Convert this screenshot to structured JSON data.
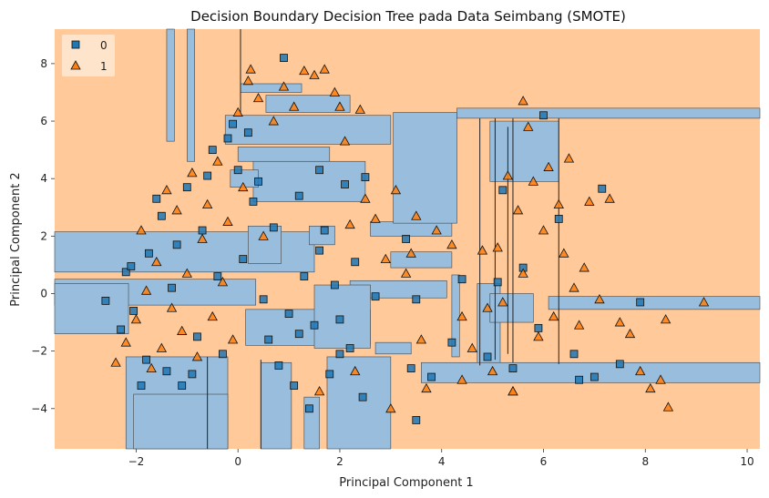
{
  "chart_data": {
    "type": "scatter",
    "title": "Decision Boundary Decision Tree pada Data Seimbang (SMOTE)",
    "xlabel": "Principal Component 1",
    "ylabel": "Principal Component 2",
    "xlim": [
      -3.6,
      10.25
    ],
    "ylim": [
      -5.4,
      9.2
    ],
    "xticks": [
      "−2",
      "0",
      "2",
      "4",
      "6",
      "8",
      "10"
    ],
    "xtick_values": [
      -2,
      0,
      2,
      4,
      6,
      8,
      10
    ],
    "yticks": [
      "−4",
      "−2",
      "0",
      "2",
      "4",
      "6",
      "8"
    ],
    "ytick_values": [
      -4,
      -2,
      0,
      2,
      4,
      6,
      8
    ],
    "grid": false,
    "legend_position": "top-left",
    "colors": {
      "class0": "#1f77b4",
      "class1": "#ff7f0e",
      "region0": "#99bedd",
      "region1": "#ffc999"
    },
    "series": [
      {
        "name": "0",
        "marker": "square",
        "points": [
          [
            -2.6,
            -0.25
          ],
          [
            -2.3,
            -1.25
          ],
          [
            -2.2,
            0.75
          ],
          [
            -2.1,
            0.95
          ],
          [
            -2.05,
            -0.6
          ],
          [
            -1.9,
            -3.2
          ],
          [
            -1.8,
            -2.3
          ],
          [
            -1.75,
            1.4
          ],
          [
            -1.6,
            3.3
          ],
          [
            -1.5,
            2.7
          ],
          [
            -1.4,
            -2.7
          ],
          [
            -1.3,
            0.2
          ],
          [
            -1.2,
            1.7
          ],
          [
            -1.1,
            -3.2
          ],
          [
            -1.0,
            3.7
          ],
          [
            -0.8,
            -1.5
          ],
          [
            -0.7,
            2.2
          ],
          [
            -0.6,
            4.1
          ],
          [
            -0.5,
            5.0
          ],
          [
            -0.4,
            0.6
          ],
          [
            -0.3,
            -2.1
          ],
          [
            -0.2,
            5.4
          ],
          [
            -0.1,
            5.9
          ],
          [
            0.0,
            4.3
          ],
          [
            0.1,
            1.2
          ],
          [
            0.2,
            5.6
          ],
          [
            0.3,
            3.2
          ],
          [
            0.5,
            -0.2
          ],
          [
            0.6,
            -1.6
          ],
          [
            0.7,
            2.3
          ],
          [
            0.8,
            -2.5
          ],
          [
            0.9,
            8.2
          ],
          [
            1.0,
            -0.7
          ],
          [
            1.1,
            -3.2
          ],
          [
            1.2,
            3.4
          ],
          [
            1.3,
            0.6
          ],
          [
            1.4,
            -4.0
          ],
          [
            1.5,
            -1.1
          ],
          [
            1.6,
            4.3
          ],
          [
            1.7,
            2.2
          ],
          [
            1.8,
            -2.8
          ],
          [
            1.9,
            0.3
          ],
          [
            2.0,
            -0.9
          ],
          [
            2.1,
            3.8
          ],
          [
            2.2,
            -1.9
          ],
          [
            2.3,
            1.1
          ],
          [
            2.45,
            -3.6
          ],
          [
            2.5,
            4.05
          ],
          [
            2.7,
            -0.1
          ],
          [
            3.3,
            1.9
          ],
          [
            3.4,
            -2.6
          ],
          [
            3.5,
            -0.2
          ],
          [
            3.8,
            -2.9
          ],
          [
            4.2,
            -1.7
          ],
          [
            4.4,
            0.5
          ],
          [
            4.9,
            -2.2
          ],
          [
            5.1,
            0.4
          ],
          [
            5.2,
            3.6
          ],
          [
            5.4,
            -2.6
          ],
          [
            5.6,
            0.9
          ],
          [
            5.9,
            -1.2
          ],
          [
            6.0,
            6.2
          ],
          [
            6.3,
            2.6
          ],
          [
            6.6,
            -2.1
          ],
          [
            6.7,
            -3.0
          ],
          [
            7.0,
            -2.9
          ],
          [
            7.15,
            3.65
          ],
          [
            7.5,
            -2.45
          ],
          [
            7.9,
            -0.3
          ],
          [
            3.5,
            -4.4
          ],
          [
            2.0,
            -2.1
          ],
          [
            1.2,
            -1.4
          ],
          [
            -0.9,
            -2.8
          ],
          [
            1.6,
            1.5
          ],
          [
            0.4,
            3.9
          ]
        ]
      },
      {
        "name": "1",
        "marker": "triangle",
        "points": [
          [
            -2.4,
            -2.4
          ],
          [
            -2.2,
            -1.7
          ],
          [
            -2.0,
            -0.9
          ],
          [
            -1.9,
            2.2
          ],
          [
            -1.8,
            0.1
          ],
          [
            -1.7,
            -2.6
          ],
          [
            -1.6,
            1.1
          ],
          [
            -1.5,
            -1.9
          ],
          [
            -1.4,
            3.6
          ],
          [
            -1.3,
            -0.5
          ],
          [
            -1.2,
            2.9
          ],
          [
            -1.1,
            -1.3
          ],
          [
            -1.0,
            0.7
          ],
          [
            -0.9,
            4.2
          ],
          [
            -0.8,
            -2.2
          ],
          [
            -0.7,
            1.9
          ],
          [
            -0.6,
            3.1
          ],
          [
            -0.5,
            -0.8
          ],
          [
            -0.4,
            4.6
          ],
          [
            -0.3,
            0.4
          ],
          [
            -0.2,
            2.5
          ],
          [
            -0.1,
            -1.6
          ],
          [
            0.0,
            6.3
          ],
          [
            0.1,
            3.7
          ],
          [
            0.2,
            7.4
          ],
          [
            0.25,
            7.8
          ],
          [
            0.4,
            6.8
          ],
          [
            0.5,
            2.0
          ],
          [
            0.7,
            6.0
          ],
          [
            0.9,
            7.2
          ],
          [
            1.1,
            6.5
          ],
          [
            1.3,
            7.75
          ],
          [
            1.5,
            7.6
          ],
          [
            1.7,
            7.8
          ],
          [
            1.9,
            7.0
          ],
          [
            2.0,
            6.5
          ],
          [
            2.1,
            5.3
          ],
          [
            2.2,
            2.4
          ],
          [
            2.4,
            6.4
          ],
          [
            2.5,
            3.3
          ],
          [
            2.7,
            2.6
          ],
          [
            2.9,
            1.2
          ],
          [
            3.0,
            -4.0
          ],
          [
            3.1,
            3.6
          ],
          [
            3.3,
            0.7
          ],
          [
            3.6,
            -1.6
          ],
          [
            3.9,
            2.2
          ],
          [
            3.5,
            2.7
          ],
          [
            3.4,
            1.4
          ],
          [
            4.2,
            1.7
          ],
          [
            4.4,
            -0.8
          ],
          [
            4.6,
            -1.9
          ],
          [
            4.8,
            1.5
          ],
          [
            4.9,
            -0.5
          ],
          [
            5.0,
            -2.7
          ],
          [
            5.1,
            1.6
          ],
          [
            5.2,
            -0.3
          ],
          [
            5.3,
            4.1
          ],
          [
            5.4,
            -3.4
          ],
          [
            5.5,
            2.9
          ],
          [
            5.6,
            0.7
          ],
          [
            5.7,
            5.8
          ],
          [
            5.8,
            3.9
          ],
          [
            5.9,
            -1.5
          ],
          [
            6.0,
            2.2
          ],
          [
            6.1,
            4.4
          ],
          [
            6.2,
            -0.8
          ],
          [
            6.3,
            3.1
          ],
          [
            6.4,
            1.4
          ],
          [
            6.5,
            4.7
          ],
          [
            6.7,
            -1.1
          ],
          [
            6.8,
            0.9
          ],
          [
            6.9,
            3.2
          ],
          [
            7.1,
            -0.2
          ],
          [
            7.3,
            3.3
          ],
          [
            7.5,
            -1.0
          ],
          [
            7.9,
            -2.7
          ],
          [
            8.1,
            -3.3
          ],
          [
            8.3,
            -3.0
          ],
          [
            8.45,
            -3.95
          ],
          [
            9.15,
            -0.3
          ],
          [
            8.4,
            -0.9
          ],
          [
            5.6,
            6.7
          ],
          [
            1.6,
            -3.4
          ],
          [
            2.3,
            -2.7
          ],
          [
            3.7,
            -3.3
          ],
          [
            4.4,
            -3.0
          ],
          [
            5.4,
            -3.4
          ],
          [
            6.6,
            0.2
          ],
          [
            7.7,
            -1.4
          ]
        ]
      }
    ]
  }
}
